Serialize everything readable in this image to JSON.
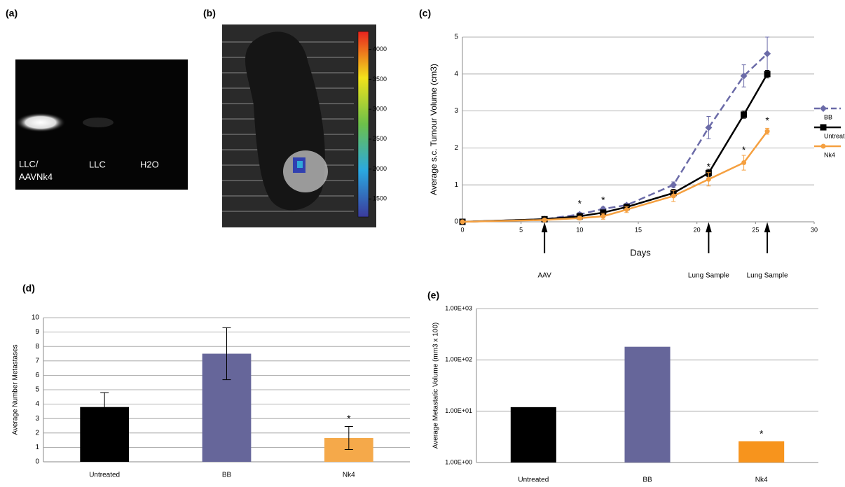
{
  "panels": [
    "(a)",
    "(b)",
    "(c)",
    "(d)",
    "(e)"
  ],
  "gel": {
    "lanes": [
      "LLC/\nAAVNk4",
      "LLC",
      "H2O"
    ]
  },
  "heatmap": {
    "colorbar_ticks": [
      1500,
      2000,
      2500,
      3000,
      3500,
      4000
    ],
    "colorbar_lim": [
      1200,
      4300
    ]
  },
  "chart_data": [
    {
      "type": "line",
      "xlabel": "Days",
      "ylabel": "Average s.c. Tumour Volume (cm3)",
      "x": [
        0,
        7,
        10,
        12,
        14,
        18,
        21,
        24,
        26
      ],
      "xlim": [
        0,
        30
      ],
      "xticks": [
        0,
        5,
        10,
        15,
        20,
        25,
        30
      ],
      "ylim": [
        0,
        5
      ],
      "yticks": [
        0,
        1,
        2,
        3,
        4,
        5
      ],
      "grid": true,
      "legend": "right",
      "series": [
        {
          "name": "BB",
          "color": "#6b6ba8",
          "line_style": "dashed",
          "marker": "diamond",
          "values": [
            0,
            0.07,
            0.2,
            0.35,
            0.45,
            1.0,
            2.55,
            3.95,
            4.55
          ],
          "errors": [
            0.02,
            0.03,
            0.05,
            0.05,
            0.05,
            0.08,
            0.3,
            0.3,
            0.45
          ]
        },
        {
          "name": "Untreated",
          "color": "#000000",
          "line_style": "solid",
          "marker": "square",
          "values": [
            0,
            0.07,
            0.15,
            0.25,
            0.4,
            0.78,
            1.32,
            2.9,
            4.0
          ],
          "errors": [
            0.02,
            0.03,
            0.04,
            0.05,
            0.05,
            0.1,
            0.1,
            0.1,
            0.1
          ]
        },
        {
          "name": "Nk4",
          "color": "#f5a040",
          "line_style": "solid",
          "marker": "circle",
          "values": [
            0,
            0.05,
            0.1,
            0.15,
            0.33,
            0.7,
            1.15,
            1.6,
            2.45
          ],
          "errors": [
            0.02,
            0.03,
            0.05,
            0.08,
            0.08,
            0.15,
            0.18,
            0.2,
            0.08
          ]
        }
      ],
      "annotations": [
        {
          "text": "*",
          "x": 10,
          "y": 0.55
        },
        {
          "text": "*",
          "x": 12,
          "y": 0.65
        },
        {
          "text": "*",
          "x": 21,
          "y": 1.55
        },
        {
          "text": "*",
          "x": 24,
          "y": 2.0
        },
        {
          "text": "*",
          "x": 26,
          "y": 2.8
        }
      ],
      "arrows": [
        {
          "text": "AAV",
          "x": 7
        },
        {
          "text": "Lung Sample",
          "x": 21
        },
        {
          "text": "Lung Sample",
          "x": 26
        }
      ]
    },
    {
      "type": "bar",
      "ylabel": "Average Number Metastases",
      "categories": [
        "Untreated",
        "BB",
        "Nk4"
      ],
      "values": [
        3.8,
        7.5,
        1.65
      ],
      "errors": [
        1.0,
        1.8,
        0.8
      ],
      "colors": [
        "#000000",
        "#66669a",
        "#f5a94a"
      ],
      "ylim": [
        0,
        10
      ],
      "yticks": [
        0,
        1,
        2,
        3,
        4,
        5,
        6,
        7,
        8,
        9,
        10
      ],
      "grid": true,
      "annotations": [
        {
          "text": "*",
          "x": "Nk4"
        }
      ]
    },
    {
      "type": "bar",
      "ylabel": "Average Metastatic Volume (mm3 x 100)",
      "yscale": "log",
      "categories": [
        "Untreated",
        "BB",
        "Nk4"
      ],
      "values": [
        12,
        180,
        2.6
      ],
      "colors": [
        "#000000",
        "#66669a",
        "#f7941d"
      ],
      "ylim": [
        1,
        1000
      ],
      "yticks": [
        {
          "value": 1,
          "label": "1.00E+00"
        },
        {
          "value": 10,
          "label": "1.00E+01"
        },
        {
          "value": 100,
          "label": "1.00E+02"
        },
        {
          "value": 1000,
          "label": "1.00E+03"
        }
      ],
      "grid": true,
      "annotations": [
        {
          "text": "*",
          "x": "Nk4"
        }
      ]
    }
  ]
}
